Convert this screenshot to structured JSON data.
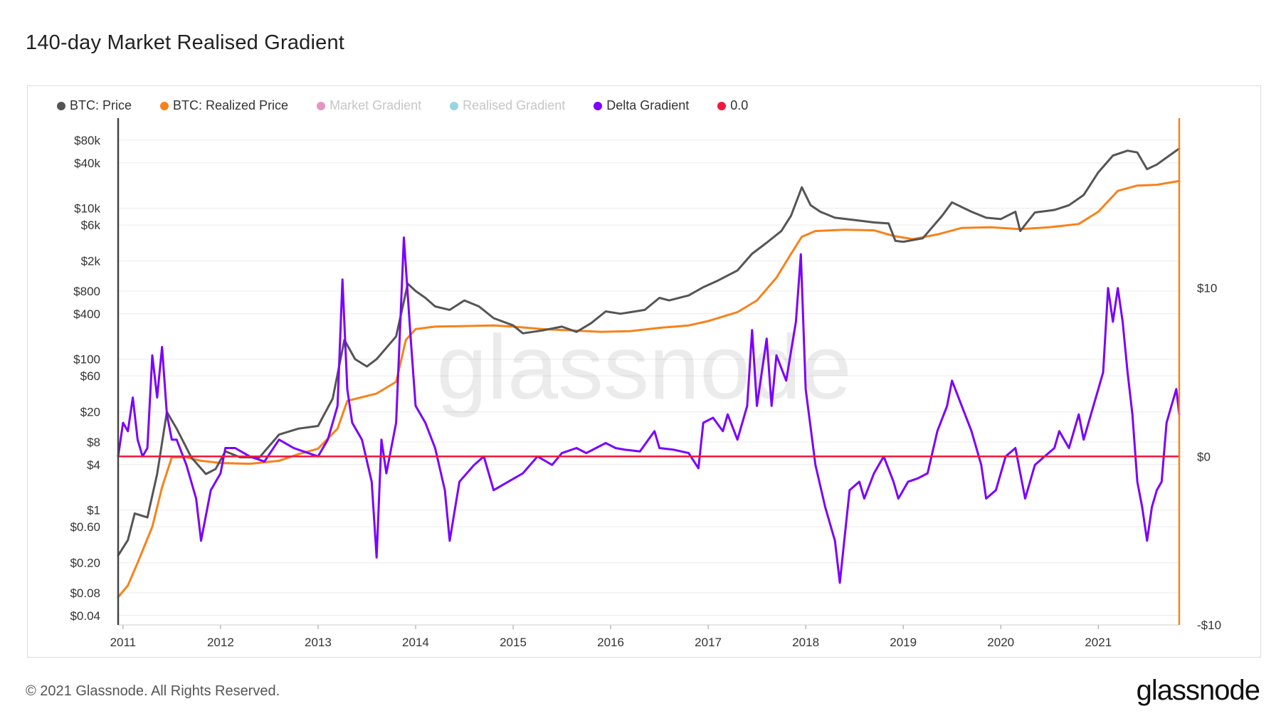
{
  "title": "140-day Market Realised Gradient",
  "footer": {
    "copyright": "© 2021 Glassnode. All Rights Reserved.",
    "logo": "glassnode"
  },
  "watermark": "glassnode",
  "legend": [
    {
      "label": "BTC: Price",
      "color": "#555555",
      "active": true
    },
    {
      "label": "BTC: Realized Price",
      "color": "#f7821b",
      "active": true
    },
    {
      "label": "Market Gradient",
      "color": "#d96aa8",
      "active": false
    },
    {
      "label": "Realised Gradient",
      "color": "#6cc3d5",
      "active": false
    },
    {
      "label": "Delta Gradient",
      "color": "#7a00ff",
      "active": true
    },
    {
      "label": "0.0",
      "color": "#f0193c",
      "active": true
    }
  ],
  "chart_data": {
    "type": "line",
    "x_range": [
      2010.95,
      2021.83
    ],
    "x_ticks": [
      "2011",
      "2012",
      "2013",
      "2014",
      "2015",
      "2016",
      "2017",
      "2018",
      "2019",
      "2020",
      "2021"
    ],
    "y_left": {
      "scale": "log",
      "range": [
        0.03,
        150000
      ],
      "ticks": [
        {
          "label": "$80k",
          "value": 80000
        },
        {
          "label": "$40k",
          "value": 40000
        },
        {
          "label": "$10k",
          "value": 10000
        },
        {
          "label": "$6k",
          "value": 6000
        },
        {
          "label": "$2k",
          "value": 2000
        },
        {
          "label": "$800",
          "value": 800
        },
        {
          "label": "$400",
          "value": 400
        },
        {
          "label": "$100",
          "value": 100
        },
        {
          "label": "$60",
          "value": 60
        },
        {
          "label": "$20",
          "value": 20
        },
        {
          "label": "$8",
          "value": 8
        },
        {
          "label": "$4",
          "value": 4
        },
        {
          "label": "$1",
          "value": 1
        },
        {
          "label": "$0.60",
          "value": 0.6
        },
        {
          "label": "$0.20",
          "value": 0.2
        },
        {
          "label": "$0.08",
          "value": 0.08
        },
        {
          "label": "$0.04",
          "value": 0.04
        }
      ]
    },
    "y_right": {
      "scale": "linear",
      "range": [
        -10,
        20
      ],
      "ticks": [
        {
          "label": "$10",
          "value": 10
        },
        {
          "label": "$0",
          "value": 0
        },
        {
          "label": "-$10",
          "value": -10
        }
      ]
    },
    "series": [
      {
        "name": "BTC: Price",
        "axis": "left",
        "color": "#555555",
        "points": [
          [
            2010.95,
            0.25
          ],
          [
            2011.05,
            0.4
          ],
          [
            2011.12,
            0.9
          ],
          [
            2011.25,
            0.8
          ],
          [
            2011.35,
            3
          ],
          [
            2011.45,
            20
          ],
          [
            2011.55,
            12
          ],
          [
            2011.7,
            5
          ],
          [
            2011.85,
            3
          ],
          [
            2011.95,
            3.5
          ],
          [
            2012.05,
            6
          ],
          [
            2012.2,
            5
          ],
          [
            2012.4,
            5
          ],
          [
            2012.6,
            10
          ],
          [
            2012.8,
            12
          ],
          [
            2013.0,
            13
          ],
          [
            2013.15,
            30
          ],
          [
            2013.27,
            180
          ],
          [
            2013.38,
            100
          ],
          [
            2013.5,
            80
          ],
          [
            2013.6,
            100
          ],
          [
            2013.8,
            200
          ],
          [
            2013.92,
            1000
          ],
          [
            2014.0,
            800
          ],
          [
            2014.1,
            650
          ],
          [
            2014.2,
            500
          ],
          [
            2014.35,
            450
          ],
          [
            2014.5,
            600
          ],
          [
            2014.65,
            500
          ],
          [
            2014.8,
            350
          ],
          [
            2015.0,
            280
          ],
          [
            2015.1,
            220
          ],
          [
            2015.3,
            240
          ],
          [
            2015.5,
            270
          ],
          [
            2015.65,
            230
          ],
          [
            2015.8,
            300
          ],
          [
            2015.95,
            430
          ],
          [
            2016.1,
            400
          ],
          [
            2016.35,
            450
          ],
          [
            2016.5,
            650
          ],
          [
            2016.6,
            600
          ],
          [
            2016.8,
            700
          ],
          [
            2016.95,
            900
          ],
          [
            2017.1,
            1100
          ],
          [
            2017.3,
            1500
          ],
          [
            2017.45,
            2500
          ],
          [
            2017.6,
            3500
          ],
          [
            2017.75,
            5000
          ],
          [
            2017.85,
            8000
          ],
          [
            2017.96,
            19000
          ],
          [
            2018.05,
            11000
          ],
          [
            2018.15,
            9000
          ],
          [
            2018.3,
            7500
          ],
          [
            2018.5,
            7000
          ],
          [
            2018.7,
            6500
          ],
          [
            2018.85,
            6300
          ],
          [
            2018.92,
            3700
          ],
          [
            2019.0,
            3600
          ],
          [
            2019.2,
            4000
          ],
          [
            2019.4,
            8000
          ],
          [
            2019.5,
            12000
          ],
          [
            2019.7,
            9000
          ],
          [
            2019.85,
            7500
          ],
          [
            2020.0,
            7200
          ],
          [
            2020.15,
            9000
          ],
          [
            2020.2,
            5000
          ],
          [
            2020.35,
            8800
          ],
          [
            2020.55,
            9500
          ],
          [
            2020.7,
            11000
          ],
          [
            2020.85,
            15000
          ],
          [
            2021.0,
            30000
          ],
          [
            2021.15,
            50000
          ],
          [
            2021.3,
            58000
          ],
          [
            2021.4,
            55000
          ],
          [
            2021.5,
            33000
          ],
          [
            2021.6,
            38000
          ],
          [
            2021.7,
            47000
          ],
          [
            2021.83,
            62000
          ]
        ]
      },
      {
        "name": "BTC: Realized Price",
        "axis": "left",
        "color": "#f7821b",
        "points": [
          [
            2010.95,
            0.07
          ],
          [
            2011.05,
            0.1
          ],
          [
            2011.15,
            0.2
          ],
          [
            2011.3,
            0.6
          ],
          [
            2011.4,
            2
          ],
          [
            2011.5,
            5
          ],
          [
            2011.65,
            5
          ],
          [
            2011.8,
            4.5
          ],
          [
            2012.0,
            4.2
          ],
          [
            2012.3,
            4.1
          ],
          [
            2012.6,
            4.5
          ],
          [
            2012.8,
            5.5
          ],
          [
            2013.0,
            6.5
          ],
          [
            2013.2,
            12
          ],
          [
            2013.3,
            28
          ],
          [
            2013.6,
            35
          ],
          [
            2013.8,
            50
          ],
          [
            2013.9,
            180
          ],
          [
            2014.0,
            250
          ],
          [
            2014.2,
            270
          ],
          [
            2014.5,
            275
          ],
          [
            2014.8,
            280
          ],
          [
            2015.0,
            270
          ],
          [
            2015.3,
            250
          ],
          [
            2015.6,
            240
          ],
          [
            2015.9,
            230
          ],
          [
            2016.2,
            235
          ],
          [
            2016.5,
            260
          ],
          [
            2016.8,
            280
          ],
          [
            2017.0,
            320
          ],
          [
            2017.3,
            420
          ],
          [
            2017.5,
            600
          ],
          [
            2017.7,
            1200
          ],
          [
            2017.85,
            2500
          ],
          [
            2017.96,
            4200
          ],
          [
            2018.1,
            5000
          ],
          [
            2018.4,
            5200
          ],
          [
            2018.7,
            5100
          ],
          [
            2018.9,
            4300
          ],
          [
            2019.1,
            3900
          ],
          [
            2019.35,
            4500
          ],
          [
            2019.6,
            5500
          ],
          [
            2019.9,
            5600
          ],
          [
            2020.2,
            5300
          ],
          [
            2020.5,
            5600
          ],
          [
            2020.8,
            6200
          ],
          [
            2021.0,
            9000
          ],
          [
            2021.2,
            17000
          ],
          [
            2021.4,
            20000
          ],
          [
            2021.6,
            20500
          ],
          [
            2021.83,
            23000
          ]
        ]
      },
      {
        "name": "Delta Gradient",
        "axis": "right",
        "color": "#7a00ff",
        "points": [
          [
            2010.95,
            0
          ],
          [
            2011.0,
            2
          ],
          [
            2011.05,
            1.5
          ],
          [
            2011.1,
            3.5
          ],
          [
            2011.15,
            1
          ],
          [
            2011.2,
            0
          ],
          [
            2011.25,
            0.5
          ],
          [
            2011.3,
            6
          ],
          [
            2011.35,
            3.5
          ],
          [
            2011.4,
            6.5
          ],
          [
            2011.45,
            2.5
          ],
          [
            2011.5,
            1
          ],
          [
            2011.55,
            1
          ],
          [
            2011.65,
            -0.5
          ],
          [
            2011.75,
            -2.5
          ],
          [
            2011.8,
            -5
          ],
          [
            2011.9,
            -2
          ],
          [
            2012.0,
            -1
          ],
          [
            2012.05,
            0.5
          ],
          [
            2012.15,
            0.5
          ],
          [
            2012.3,
            0
          ],
          [
            2012.45,
            -0.3
          ],
          [
            2012.6,
            1
          ],
          [
            2012.75,
            0.5
          ],
          [
            2012.9,
            0.2
          ],
          [
            2013.0,
            0
          ],
          [
            2013.1,
            1
          ],
          [
            2013.2,
            3
          ],
          [
            2013.25,
            10.5
          ],
          [
            2013.3,
            4
          ],
          [
            2013.35,
            2
          ],
          [
            2013.45,
            1
          ],
          [
            2013.55,
            -1.5
          ],
          [
            2013.6,
            -6
          ],
          [
            2013.65,
            1
          ],
          [
            2013.7,
            -1
          ],
          [
            2013.8,
            2
          ],
          [
            2013.88,
            13
          ],
          [
            2013.95,
            7
          ],
          [
            2014.0,
            3
          ],
          [
            2014.1,
            2
          ],
          [
            2014.2,
            0.5
          ],
          [
            2014.3,
            -2
          ],
          [
            2014.35,
            -5
          ],
          [
            2014.45,
            -1.5
          ],
          [
            2014.6,
            -0.5
          ],
          [
            2014.7,
            0
          ],
          [
            2014.8,
            -2
          ],
          [
            2014.95,
            -1.5
          ],
          [
            2015.1,
            -1
          ],
          [
            2015.25,
            0
          ],
          [
            2015.4,
            -0.5
          ],
          [
            2015.5,
            0.2
          ],
          [
            2015.65,
            0.5
          ],
          [
            2015.75,
            0.2
          ],
          [
            2015.85,
            0.5
          ],
          [
            2015.95,
            0.8
          ],
          [
            2016.05,
            0.5
          ],
          [
            2016.15,
            0.4
          ],
          [
            2016.3,
            0.3
          ],
          [
            2016.45,
            1.5
          ],
          [
            2016.5,
            0.5
          ],
          [
            2016.65,
            0.4
          ],
          [
            2016.8,
            0.2
          ],
          [
            2016.9,
            -0.7
          ],
          [
            2016.95,
            2
          ],
          [
            2017.05,
            2.3
          ],
          [
            2017.15,
            1.5
          ],
          [
            2017.2,
            2.5
          ],
          [
            2017.3,
            1
          ],
          [
            2017.4,
            3
          ],
          [
            2017.45,
            7.5
          ],
          [
            2017.5,
            3
          ],
          [
            2017.6,
            7
          ],
          [
            2017.65,
            3
          ],
          [
            2017.7,
            6
          ],
          [
            2017.8,
            4.5
          ],
          [
            2017.9,
            8
          ],
          [
            2017.95,
            12
          ],
          [
            2018.0,
            4
          ],
          [
            2018.1,
            -0.5
          ],
          [
            2018.2,
            -3
          ],
          [
            2018.3,
            -5
          ],
          [
            2018.35,
            -7.5
          ],
          [
            2018.45,
            -2
          ],
          [
            2018.55,
            -1.5
          ],
          [
            2018.6,
            -2.5
          ],
          [
            2018.7,
            -1
          ],
          [
            2018.8,
            0
          ],
          [
            2018.9,
            -1.5
          ],
          [
            2018.95,
            -2.5
          ],
          [
            2019.05,
            -1.5
          ],
          [
            2019.15,
            -1.3
          ],
          [
            2019.25,
            -1
          ],
          [
            2019.35,
            1.5
          ],
          [
            2019.45,
            3
          ],
          [
            2019.5,
            4.5
          ],
          [
            2019.6,
            3
          ],
          [
            2019.7,
            1.5
          ],
          [
            2019.8,
            -0.5
          ],
          [
            2019.85,
            -2.5
          ],
          [
            2019.95,
            -2
          ],
          [
            2020.05,
            0
          ],
          [
            2020.15,
            0.5
          ],
          [
            2020.25,
            -2.5
          ],
          [
            2020.35,
            -0.5
          ],
          [
            2020.45,
            0
          ],
          [
            2020.55,
            0.5
          ],
          [
            2020.6,
            1.5
          ],
          [
            2020.7,
            0.5
          ],
          [
            2020.8,
            2.5
          ],
          [
            2020.85,
            1
          ],
          [
            2020.95,
            3
          ],
          [
            2021.0,
            4
          ],
          [
            2021.05,
            5
          ],
          [
            2021.1,
            10
          ],
          [
            2021.15,
            8
          ],
          [
            2021.2,
            10
          ],
          [
            2021.25,
            8
          ],
          [
            2021.3,
            5
          ],
          [
            2021.35,
            2.5
          ],
          [
            2021.4,
            -1.5
          ],
          [
            2021.45,
            -3
          ],
          [
            2021.5,
            -5
          ],
          [
            2021.55,
            -3
          ],
          [
            2021.6,
            -2
          ],
          [
            2021.65,
            -1.5
          ],
          [
            2021.7,
            2
          ],
          [
            2021.75,
            3
          ],
          [
            2021.8,
            4
          ],
          [
            2021.83,
            2.5
          ]
        ]
      },
      {
        "name": "0.0",
        "axis": "right",
        "color": "#f0193c",
        "points": [
          [
            2010.95,
            0
          ],
          [
            2021.83,
            0
          ]
        ]
      }
    ],
    "grid": true,
    "legend_position": "top-left"
  }
}
